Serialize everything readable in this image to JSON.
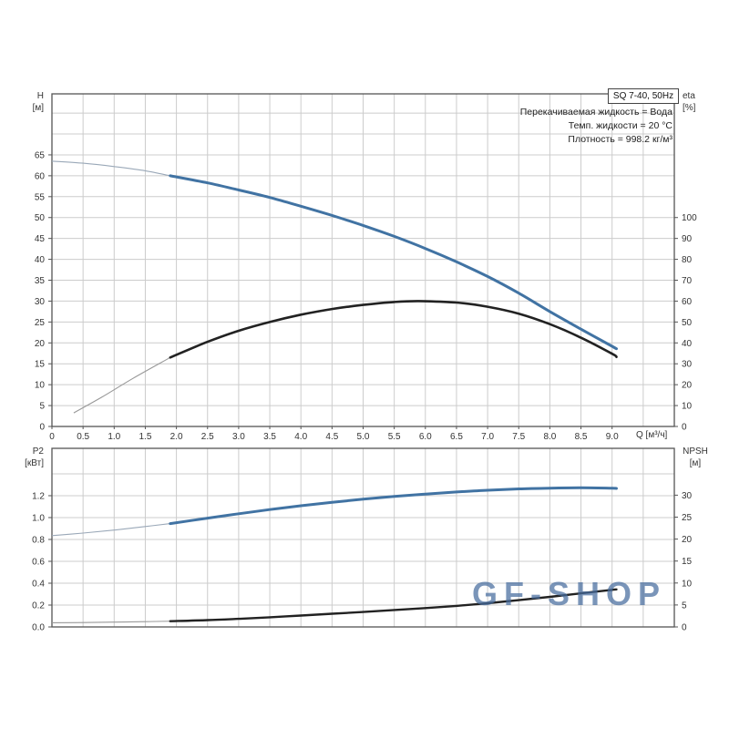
{
  "page": {
    "background": "#ffffff"
  },
  "watermark": {
    "text": "GF-SHOP",
    "color": "rgba(70,108,158,0.72)"
  },
  "conditions": [
    "Перекачиваемая жидкость = Вода",
    "Темп. жидкости = 20 °C",
    "Плотность = 998.2 кг/м³"
  ],
  "colors": {
    "curve_blue": "#4173a3",
    "curve_black": "#222222",
    "thin_blue": "#9aa8b8",
    "thin_black": "#989898",
    "grid": "#cccccc",
    "border": "#555555",
    "tick_text": "#333333"
  },
  "chart_data": [
    {
      "id": "head-chart",
      "type": "line",
      "title": "SQ 7-40, 50Hz",
      "xlabel": "Q [м³/ч]",
      "xlim": [
        0,
        10
      ],
      "x_grid_step": 0.5,
      "x_ticks": [
        0,
        0.5,
        1,
        1.5,
        2,
        2.5,
        3,
        3.5,
        4,
        4.5,
        5,
        5.5,
        6,
        6.5,
        7,
        7.5,
        8,
        8.5,
        9
      ],
      "x_tick_labels": [
        "0",
        "0.5",
        "1.0",
        "1.5",
        "2.0",
        "2.5",
        "3.0",
        "3.5",
        "4.0",
        "4.5",
        "5.0",
        "5.5",
        "6.0",
        "6.5",
        "7.0",
        "7.5",
        "8.0",
        "8.5",
        "9.0"
      ],
      "y_left": {
        "name": "H",
        "unit": "[м]",
        "lim": [
          0,
          79.6
        ],
        "grid_step": 5,
        "grid_max": 75,
        "ticks": [
          0,
          5,
          10,
          15,
          20,
          25,
          30,
          35,
          40,
          45,
          50,
          55,
          60,
          65
        ],
        "tick_labels": [
          "0",
          "5",
          "10",
          "15",
          "20",
          "25",
          "30",
          "35",
          "40",
          "45",
          "50",
          "55",
          "60",
          "65"
        ]
      },
      "y_right": {
        "name": "eta",
        "unit": "[%]",
        "lim": [
          0,
          159.2
        ],
        "ticks": [
          0,
          10,
          20,
          30,
          40,
          50,
          60,
          70,
          80,
          90,
          100
        ],
        "tick_labels": [
          "0",
          "10",
          "20",
          "30",
          "40",
          "50",
          "60",
          "70",
          "80",
          "90",
          "100"
        ]
      },
      "series": [
        {
          "name": "head-curve",
          "axis": "left",
          "color_key": "curve_blue",
          "thin_color_key": "thin_blue",
          "thin_until": 1.9,
          "width": 3,
          "points": [
            [
              0,
              63.5
            ],
            [
              0.5,
              63.0
            ],
            [
              1,
              62.2
            ],
            [
              1.5,
              61.2
            ],
            [
              1.9,
              60.0
            ],
            [
              2.5,
              58.3
            ],
            [
              3,
              56.6
            ],
            [
              3.5,
              54.8
            ],
            [
              4,
              52.7
            ],
            [
              4.5,
              50.5
            ],
            [
              5,
              48.1
            ],
            [
              5.5,
              45.5
            ],
            [
              6,
              42.6
            ],
            [
              6.5,
              39.4
            ],
            [
              7,
              35.9
            ],
            [
              7.5,
              31.9
            ],
            [
              8,
              27.5
            ],
            [
              8.5,
              23.3
            ],
            [
              9,
              19.2
            ],
            [
              9.07,
              18.6
            ]
          ]
        },
        {
          "name": "efficiency-curve",
          "axis": "right",
          "color_key": "curve_black",
          "thin_color_key": "thin_black",
          "thin_until": 1.9,
          "width": 2.6,
          "points": [
            [
              0.35,
              6.5
            ],
            [
              0.8,
              14
            ],
            [
              1.3,
              23
            ],
            [
              1.9,
              33
            ],
            [
              2.5,
              40.5
            ],
            [
              3,
              45.8
            ],
            [
              3.5,
              50
            ],
            [
              4,
              53.5
            ],
            [
              4.5,
              56.2
            ],
            [
              5,
              58.2
            ],
            [
              5.5,
              59.6
            ],
            [
              5.9,
              60
            ],
            [
              6.5,
              59.3
            ],
            [
              7,
              57.3
            ],
            [
              7.5,
              54
            ],
            [
              8,
              49
            ],
            [
              8.5,
              42.5
            ],
            [
              9,
              34.8
            ],
            [
              9.07,
              33.3
            ]
          ]
        }
      ]
    },
    {
      "id": "power-chart",
      "type": "line",
      "xlim": [
        0,
        10
      ],
      "x_grid_step": 0.5,
      "x_ticks": [],
      "x_tick_labels": [],
      "y_left": {
        "name": "P2",
        "unit": "[кВт]",
        "lim": [
          0,
          1.633
        ],
        "grid_step": 0.2,
        "grid_max": 1.45,
        "ticks": [
          0,
          0.2,
          0.4,
          0.6,
          0.8,
          1.0,
          1.2
        ],
        "tick_labels": [
          "0.0",
          "0.2",
          "0.4",
          "0.6",
          "0.8",
          "1.0",
          "1.2"
        ]
      },
      "y_right": {
        "name": "NPSH",
        "unit": "[м]",
        "lim": [
          0,
          40.66
        ],
        "ticks": [
          0,
          5,
          10,
          15,
          20,
          25,
          30
        ],
        "tick_labels": [
          "0",
          "5",
          "10",
          "15",
          "20",
          "25",
          "30"
        ]
      },
      "series": [
        {
          "name": "p2-curve",
          "axis": "left",
          "color_key": "curve_blue",
          "thin_color_key": "thin_blue",
          "thin_until": 1.9,
          "width": 3,
          "points": [
            [
              0,
              0.835
            ],
            [
              0.5,
              0.858
            ],
            [
              1,
              0.886
            ],
            [
              1.5,
              0.918
            ],
            [
              1.9,
              0.945
            ],
            [
              2.5,
              0.995
            ],
            [
              3,
              1.035
            ],
            [
              3.5,
              1.073
            ],
            [
              4,
              1.108
            ],
            [
              4.5,
              1.14
            ],
            [
              5,
              1.168
            ],
            [
              5.5,
              1.193
            ],
            [
              6,
              1.215
            ],
            [
              6.5,
              1.234
            ],
            [
              7,
              1.25
            ],
            [
              7.5,
              1.262
            ],
            [
              8,
              1.269
            ],
            [
              8.5,
              1.272
            ],
            [
              9,
              1.268
            ],
            [
              9.07,
              1.266
            ]
          ]
        },
        {
          "name": "npsh-curve",
          "axis": "right",
          "color_key": "curve_black",
          "thin_color_key": "thin_black",
          "thin_until": 1.9,
          "width": 2.4,
          "points": [
            [
              0,
              0.95
            ],
            [
              0.5,
              1.0
            ],
            [
              1,
              1.1
            ],
            [
              1.5,
              1.2
            ],
            [
              1.9,
              1.3
            ],
            [
              2.5,
              1.55
            ],
            [
              3,
              1.85
            ],
            [
              3.5,
              2.2
            ],
            [
              4,
              2.6
            ],
            [
              4.5,
              3.0
            ],
            [
              5,
              3.4
            ],
            [
              5.5,
              3.85
            ],
            [
              6,
              4.3
            ],
            [
              6.5,
              4.8
            ],
            [
              7,
              5.4
            ],
            [
              7.5,
              6.1
            ],
            [
              8,
              6.85
            ],
            [
              8.5,
              7.65
            ],
            [
              9,
              8.45
            ],
            [
              9.07,
              8.55
            ]
          ]
        }
      ]
    }
  ]
}
